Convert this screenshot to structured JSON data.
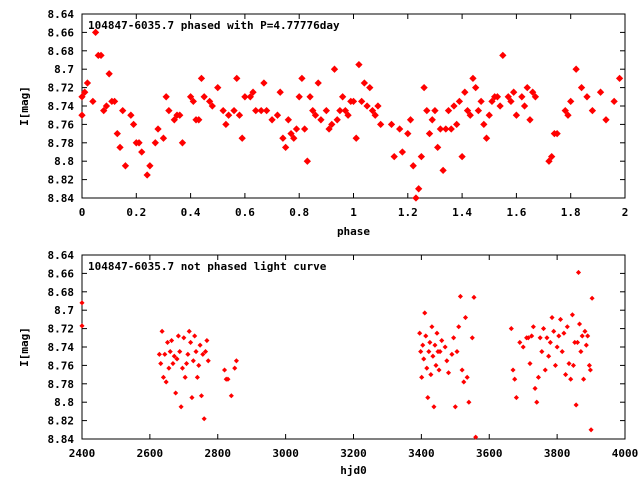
{
  "chart_data": [
    {
      "type": "scatter",
      "title": "104847-6035.7 phased with P=4.77776day",
      "xlabel": "phase",
      "ylabel": "I[mag]",
      "xlim": [
        0,
        2
      ],
      "ylim": [
        8.84,
        8.64
      ],
      "y_inverted": true,
      "xticks": [
        "0",
        "0.2",
        "0.4",
        "0.6",
        "0.8",
        "1",
        "1.2",
        "1.4",
        "1.6",
        "1.8",
        "2"
      ],
      "yticks": [
        "8.64",
        "8.66",
        "8.68",
        "8.7",
        "8.72",
        "8.74",
        "8.76",
        "8.78",
        "8.8",
        "8.82",
        "8.84"
      ],
      "marker_color": "#ff0000",
      "marker_size": "large",
      "grid": false,
      "points": [
        [
          0.0,
          8.73
        ],
        [
          0.01,
          8.725
        ],
        [
          0.0,
          8.75
        ],
        [
          0.02,
          8.715
        ],
        [
          0.04,
          8.735
        ],
        [
          0.05,
          8.66
        ],
        [
          0.06,
          8.685
        ],
        [
          0.07,
          8.685
        ],
        [
          0.08,
          8.745
        ],
        [
          0.09,
          8.74
        ],
        [
          0.1,
          8.705
        ],
        [
          0.11,
          8.735
        ],
        [
          0.12,
          8.735
        ],
        [
          0.13,
          8.77
        ],
        [
          0.14,
          8.785
        ],
        [
          0.15,
          8.745
        ],
        [
          0.16,
          8.805
        ],
        [
          0.18,
          8.75
        ],
        [
          0.19,
          8.76
        ],
        [
          0.2,
          8.78
        ],
        [
          0.21,
          8.78
        ],
        [
          0.22,
          8.79
        ],
        [
          0.24,
          8.815
        ],
        [
          0.25,
          8.805
        ],
        [
          0.27,
          8.78
        ],
        [
          0.28,
          8.765
        ],
        [
          0.3,
          8.775
        ],
        [
          0.31,
          8.73
        ],
        [
          0.32,
          8.745
        ],
        [
          0.34,
          8.755
        ],
        [
          0.35,
          8.75
        ],
        [
          0.36,
          8.75
        ],
        [
          0.37,
          8.78
        ],
        [
          0.4,
          8.73
        ],
        [
          0.41,
          8.735
        ],
        [
          0.42,
          8.755
        ],
        [
          0.43,
          8.755
        ],
        [
          0.44,
          8.71
        ],
        [
          0.45,
          8.73
        ],
        [
          0.47,
          8.735
        ],
        [
          0.48,
          8.74
        ],
        [
          0.5,
          8.72
        ],
        [
          0.52,
          8.745
        ],
        [
          0.53,
          8.76
        ],
        [
          0.54,
          8.75
        ],
        [
          0.56,
          8.745
        ],
        [
          0.57,
          8.71
        ],
        [
          0.58,
          8.75
        ],
        [
          0.59,
          8.775
        ],
        [
          0.6,
          8.73
        ],
        [
          0.62,
          8.73
        ],
        [
          0.63,
          8.725
        ],
        [
          0.64,
          8.745
        ],
        [
          0.66,
          8.745
        ],
        [
          0.67,
          8.715
        ],
        [
          0.68,
          8.745
        ],
        [
          0.7,
          8.755
        ],
        [
          0.72,
          8.75
        ],
        [
          0.73,
          8.725
        ],
        [
          0.74,
          8.775
        ],
        [
          0.75,
          8.785
        ],
        [
          0.76,
          8.755
        ],
        [
          0.77,
          8.77
        ],
        [
          0.78,
          8.775
        ],
        [
          0.79,
          8.765
        ],
        [
          0.8,
          8.73
        ],
        [
          0.81,
          8.71
        ],
        [
          0.82,
          8.765
        ],
        [
          0.83,
          8.8
        ],
        [
          0.84,
          8.73
        ],
        [
          0.85,
          8.745
        ],
        [
          0.86,
          8.75
        ],
        [
          0.87,
          8.715
        ],
        [
          0.88,
          8.755
        ],
        [
          0.9,
          8.745
        ],
        [
          0.91,
          8.765
        ],
        [
          0.92,
          8.76
        ],
        [
          0.93,
          8.7
        ],
        [
          0.94,
          8.755
        ],
        [
          0.95,
          8.745
        ],
        [
          0.96,
          8.73
        ],
        [
          0.97,
          8.745
        ],
        [
          0.98,
          8.75
        ],
        [
          0.99,
          8.735
        ],
        [
          1.0,
          8.735
        ],
        [
          1.01,
          8.775
        ],
        [
          1.02,
          8.695
        ],
        [
          1.03,
          8.735
        ],
        [
          1.04,
          8.715
        ],
        [
          1.05,
          8.74
        ],
        [
          1.06,
          8.72
        ],
        [
          1.07,
          8.745
        ],
        [
          1.08,
          8.75
        ],
        [
          1.09,
          8.74
        ],
        [
          1.1,
          8.76
        ],
        [
          1.14,
          8.76
        ],
        [
          1.15,
          8.795
        ],
        [
          1.17,
          8.765
        ],
        [
          1.18,
          8.79
        ],
        [
          1.2,
          8.77
        ],
        [
          1.21,
          8.755
        ],
        [
          1.22,
          8.805
        ],
        [
          1.23,
          8.84
        ],
        [
          1.24,
          8.83
        ],
        [
          1.25,
          8.795
        ],
        [
          1.26,
          8.72
        ],
        [
          1.27,
          8.745
        ],
        [
          1.28,
          8.77
        ],
        [
          1.29,
          8.755
        ],
        [
          1.3,
          8.745
        ],
        [
          1.31,
          8.785
        ],
        [
          1.32,
          8.765
        ],
        [
          1.33,
          8.81
        ],
        [
          1.34,
          8.765
        ],
        [
          1.35,
          8.745
        ],
        [
          1.36,
          8.765
        ],
        [
          1.37,
          8.74
        ],
        [
          1.38,
          8.76
        ],
        [
          1.39,
          8.735
        ],
        [
          1.4,
          8.795
        ],
        [
          1.41,
          8.725
        ],
        [
          1.42,
          8.745
        ],
        [
          1.43,
          8.75
        ],
        [
          1.44,
          8.71
        ],
        [
          1.45,
          8.72
        ],
        [
          1.46,
          8.745
        ],
        [
          1.47,
          8.735
        ],
        [
          1.48,
          8.76
        ],
        [
          1.49,
          8.775
        ],
        [
          1.5,
          8.75
        ],
        [
          1.51,
          8.735
        ],
        [
          1.52,
          8.73
        ],
        [
          1.53,
          8.73
        ],
        [
          1.54,
          8.74
        ],
        [
          1.55,
          8.685
        ],
        [
          1.57,
          8.73
        ],
        [
          1.58,
          8.735
        ],
        [
          1.59,
          8.725
        ],
        [
          1.6,
          8.75
        ],
        [
          1.62,
          8.73
        ],
        [
          1.63,
          8.74
        ],
        [
          1.64,
          8.72
        ],
        [
          1.65,
          8.755
        ],
        [
          1.66,
          8.725
        ],
        [
          1.67,
          8.73
        ],
        [
          1.72,
          8.8
        ],
        [
          1.73,
          8.795
        ],
        [
          1.74,
          8.77
        ],
        [
          1.75,
          8.77
        ],
        [
          1.78,
          8.745
        ],
        [
          1.79,
          8.75
        ],
        [
          1.8,
          8.735
        ],
        [
          1.82,
          8.7
        ],
        [
          1.84,
          8.72
        ],
        [
          1.86,
          8.73
        ],
        [
          1.88,
          8.745
        ],
        [
          1.91,
          8.725
        ],
        [
          1.93,
          8.755
        ],
        [
          1.96,
          8.735
        ],
        [
          1.98,
          8.71
        ]
      ]
    },
    {
      "type": "scatter",
      "title": "104847-6035.7 not phased light curve",
      "xlabel": "hjd0",
      "ylabel": "I[mag]",
      "xlim": [
        2400,
        4000
      ],
      "ylim": [
        8.84,
        8.64
      ],
      "y_inverted": true,
      "xticks": [
        "2400",
        "2600",
        "2800",
        "3000",
        "3200",
        "3400",
        "3600",
        "3800",
        "4000"
      ],
      "yticks": [
        "8.64",
        "8.66",
        "8.68",
        "8.7",
        "8.72",
        "8.74",
        "8.76",
        "8.78",
        "8.8",
        "8.82",
        "8.84"
      ],
      "marker_color": "#ff0000",
      "marker_size": "small",
      "grid": false,
      "points": [
        [
          2400,
          8.692
        ],
        [
          2400,
          8.717
        ],
        [
          2628,
          8.748
        ],
        [
          2632,
          8.758
        ],
        [
          2636,
          8.723
        ],
        [
          2640,
          8.773
        ],
        [
          2644,
          8.748
        ],
        [
          2648,
          8.778
        ],
        [
          2652,
          8.735
        ],
        [
          2656,
          8.763
        ],
        [
          2660,
          8.745
        ],
        [
          2664,
          8.733
        ],
        [
          2668,
          8.758
        ],
        [
          2672,
          8.75
        ],
        [
          2676,
          8.79
        ],
        [
          2680,
          8.753
        ],
        [
          2684,
          8.728
        ],
        [
          2688,
          8.745
        ],
        [
          2692,
          8.805
        ],
        [
          2696,
          8.763
        ],
        [
          2700,
          8.73
        ],
        [
          2704,
          8.773
        ],
        [
          2708,
          8.758
        ],
        [
          2712,
          8.748
        ],
        [
          2716,
          8.723
        ],
        [
          2720,
          8.735
        ],
        [
          2724,
          8.795
        ],
        [
          2728,
          8.755
        ],
        [
          2732,
          8.728
        ],
        [
          2736,
          8.745
        ],
        [
          2740,
          8.773
        ],
        [
          2744,
          8.76
        ],
        [
          2748,
          8.738
        ],
        [
          2752,
          8.793
        ],
        [
          2756,
          8.748
        ],
        [
          2760,
          8.818
        ],
        [
          2764,
          8.745
        ],
        [
          2768,
          8.733
        ],
        [
          2772,
          8.755
        ],
        [
          2820,
          8.765
        ],
        [
          2825,
          8.775
        ],
        [
          2830,
          8.775
        ],
        [
          2840,
          8.793
        ],
        [
          2850,
          8.763
        ],
        [
          2855,
          8.755
        ],
        [
          3395,
          8.725
        ],
        [
          3398,
          8.745
        ],
        [
          3401,
          8.773
        ],
        [
          3404,
          8.738
        ],
        [
          3407,
          8.753
        ],
        [
          3410,
          8.703
        ],
        [
          3413,
          8.728
        ],
        [
          3416,
          8.763
        ],
        [
          3419,
          8.795
        ],
        [
          3422,
          8.745
        ],
        [
          3425,
          8.735
        ],
        [
          3428,
          8.77
        ],
        [
          3431,
          8.718
        ],
        [
          3434,
          8.75
        ],
        [
          3437,
          8.805
        ],
        [
          3440,
          8.738
        ],
        [
          3443,
          8.76
        ],
        [
          3446,
          8.725
        ],
        [
          3449,
          8.745
        ],
        [
          3452,
          8.765
        ],
        [
          3455,
          8.745
        ],
        [
          3460,
          8.733
        ],
        [
          3470,
          8.74
        ],
        [
          3475,
          8.755
        ],
        [
          3480,
          8.768
        ],
        [
          3490,
          8.748
        ],
        [
          3495,
          8.73
        ],
        [
          3500,
          8.805
        ],
        [
          3505,
          8.745
        ],
        [
          3510,
          8.718
        ],
        [
          3515,
          8.685
        ],
        [
          3520,
          8.765
        ],
        [
          3525,
          8.778
        ],
        [
          3530,
          8.708
        ],
        [
          3535,
          8.773
        ],
        [
          3540,
          8.8
        ],
        [
          3550,
          8.73
        ],
        [
          3555,
          8.686
        ],
        [
          3560,
          8.838
        ],
        [
          3665,
          8.72
        ],
        [
          3670,
          8.765
        ],
        [
          3675,
          8.775
        ],
        [
          3680,
          8.795
        ],
        [
          3690,
          8.735
        ],
        [
          3700,
          8.74
        ],
        [
          3710,
          8.73
        ],
        [
          3715,
          8.73
        ],
        [
          3720,
          8.758
        ],
        [
          3725,
          8.728
        ],
        [
          3730,
          8.718
        ],
        [
          3735,
          8.785
        ],
        [
          3740,
          8.8
        ],
        [
          3745,
          8.773
        ],
        [
          3750,
          8.73
        ],
        [
          3755,
          8.745
        ],
        [
          3760,
          8.72
        ],
        [
          3765,
          8.765
        ],
        [
          3770,
          8.73
        ],
        [
          3775,
          8.75
        ],
        [
          3780,
          8.735
        ],
        [
          3785,
          8.708
        ],
        [
          3790,
          8.723
        ],
        [
          3795,
          8.76
        ],
        [
          3800,
          8.74
        ],
        [
          3805,
          8.728
        ],
        [
          3810,
          8.71
        ],
        [
          3815,
          8.745
        ],
        [
          3820,
          8.725
        ],
        [
          3825,
          8.77
        ],
        [
          3830,
          8.718
        ],
        [
          3835,
          8.758
        ],
        [
          3840,
          8.775
        ],
        [
          3845,
          8.705
        ],
        [
          3848,
          8.76
        ],
        [
          3852,
          8.735
        ],
        [
          3856,
          8.803
        ],
        [
          3860,
          8.735
        ],
        [
          3863,
          8.659
        ],
        [
          3866,
          8.715
        ],
        [
          3870,
          8.745
        ],
        [
          3874,
          8.728
        ],
        [
          3878,
          8.775
        ],
        [
          3882,
          8.723
        ],
        [
          3886,
          8.738
        ],
        [
          3890,
          8.728
        ],
        [
          3895,
          8.76
        ],
        [
          3898,
          8.765
        ],
        [
          3900,
          8.83
        ],
        [
          3903,
          8.687
        ]
      ]
    }
  ]
}
